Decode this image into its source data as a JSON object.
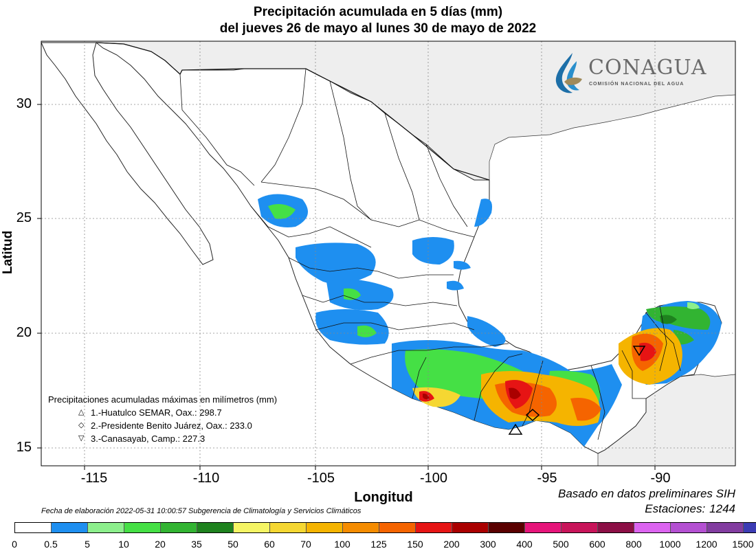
{
  "title_line1": "Precipitación acumulada en 5 días (mm)",
  "title_line2": "del jueves 26 de mayo al lunes 30 de mayo de 2022",
  "axes": {
    "x_label": "Longitud",
    "y_label": "Latitud",
    "x_ticks": [
      "-115",
      "-110",
      "-105",
      "-100",
      "-95",
      "-90"
    ],
    "y_ticks": [
      "30",
      "25",
      "20",
      "15"
    ],
    "lon_range": [
      -117,
      -87
    ],
    "lat_range": [
      14.2,
      32.8
    ]
  },
  "logo": {
    "name": "CONAGUA",
    "subtitle": "COMISIÓN NACIONAL DEL AGUA"
  },
  "max_precip": {
    "heading": "Precipitaciones acumuladas máximas en milímetros (mm)",
    "entries": [
      {
        "symbol": "△",
        "text": "1.-Huatulco SEMAR, Oax.: 298.7",
        "lon": -96.1,
        "lat": 15.8
      },
      {
        "symbol": "◇",
        "text": "2.-Presidente Benito Juárez, Oax.: 233.0",
        "lon": -95.4,
        "lat": 16.45
      },
      {
        "symbol": "▽",
        "text": "3.-Canasayab, Camp.: 227.3",
        "lon": -90.6,
        "lat": 19.2
      }
    ]
  },
  "footer": {
    "basis": "Basado en datos preliminares SIH",
    "stations_label": "Estaciones:",
    "stations_count": "1244",
    "credit": "Fecha de elaboración 2022-05-31 10:00:57 Subgerencia de Climatología y Servicios Climáticos"
  },
  "colors": {
    "land": "#ffffff",
    "other_land": "#eeeeee",
    "ocean": "#ffffff",
    "grid": "#888888"
  },
  "legend": {
    "labels": [
      "0",
      "0.5",
      "5",
      "10",
      "20",
      "35",
      "50",
      "60",
      "70",
      "100",
      "125",
      "150",
      "200",
      "300",
      "400",
      "500",
      "600",
      "800",
      "1000",
      "1200",
      "1500"
    ],
    "colors": [
      "#ffffff",
      "#1e8ff0",
      "#8cef8c",
      "#45e045",
      "#32b432",
      "#1e821e",
      "#f5f564",
      "#f5d732",
      "#f5b400",
      "#f58c00",
      "#f56400",
      "#e61414",
      "#aa0000",
      "#5a0000",
      "#e6147a",
      "#c8145a",
      "#8c0f46",
      "#dc64f0",
      "#b450d2",
      "#823ca0",
      "#3c3cb4"
    ]
  }
}
